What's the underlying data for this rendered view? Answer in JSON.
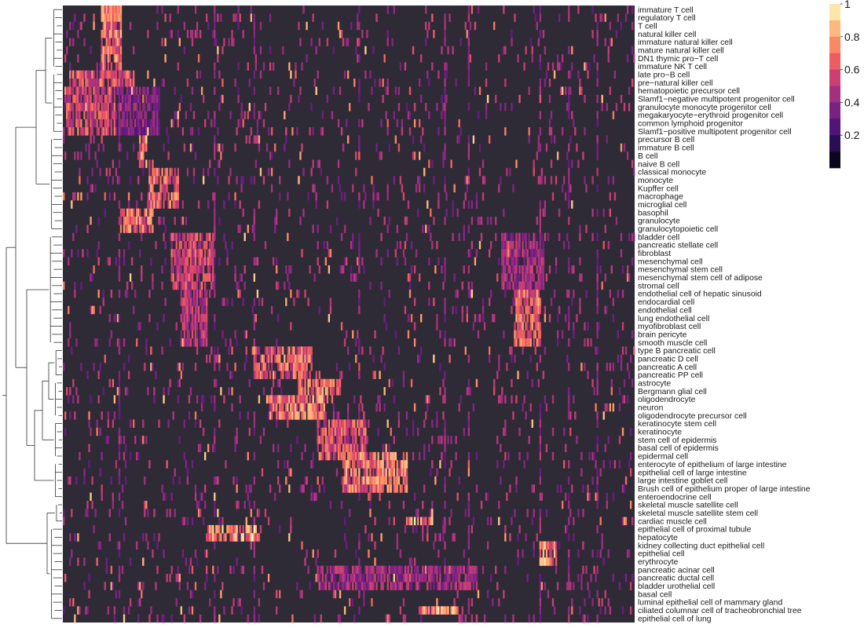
{
  "chart_data": {
    "type": "heatmap",
    "title": "",
    "xlabel": "",
    "ylabel": "",
    "row_labels": [
      "immature T cell",
      "regulatory T cell",
      "T cell",
      "natural killer cell",
      "immature natural killer cell",
      "mature natural killer cell",
      "DN1 thymic pro−T cell",
      "immature NK T cell",
      "late pro−B cell",
      "pre−natural killer cell",
      "hematopoietic precursor cell",
      "Slamf1−negative multipotent progenitor cell",
      "granulocyte monocyte progenitor cell",
      "megakaryocyte−erythroid progenitor cell",
      "common lymphoid progenitor",
      "Slamf1−positive multipotent progenitor cell",
      "precursor B cell",
      "immature B cell",
      "B cell",
      "naive B cell",
      "classical monocyte",
      "monocyte",
      "Kupffer cell",
      "macrophage",
      "microglial cell",
      "basophil",
      "granulocyte",
      "granulocytopoietic cell",
      "bladder cell",
      "pancreatic stellate cell",
      "fibroblast",
      "mesenchymal cell",
      "mesenchymal stem cell",
      "mesenchymal stem cell of adipose",
      "stromal cell",
      "endothelial cell of hepatic sinusoid",
      "endocardial cell",
      "endothelial cell",
      "lung endothelial cell",
      "myofibroblast cell",
      "brain pericyte",
      "smooth muscle cell",
      "type B pancreatic cell",
      "pancreatic D cell",
      "pancreatic A cell",
      "pancreatic PP cell",
      "astrocyte",
      "Bergmann glial cell",
      "oligodendrocyte",
      "neuron",
      "oligodendrocyte precursor cell",
      "keratinocyte stem cell",
      "keratinocyte",
      "stem cell of epidermis",
      "basal cell of epidermis",
      "epidermal cell",
      "enterocyte of epithelium of large intestine",
      "epithelial cell of large intestine",
      "large intestine goblet cell",
      "Brush cell of epithelium proper of large intestine",
      "enteroendocrine cell",
      "skeletal muscle satellite cell",
      "skeletal muscle satellite stem cell",
      "cardiac muscle cell",
      "epithelial cell of proximal tubule",
      "hepatocyte",
      "kidney collecting duct epithelial cell",
      "epithelial cell",
      "erythrocyte",
      "pancreatic acinar cell",
      "pancreatic ductal cell",
      "bladder urothelial cell",
      "basal cell",
      "luminal epithelial cell of mammary gland",
      "ciliated columnar cell of tracheobronchial tree",
      "epithelial cell of lung"
    ],
    "n_columns": 360,
    "value_range": [
      0,
      1
    ],
    "colorbar": {
      "ticks": [
        0.2,
        0.4,
        0.6,
        0.8,
        1
      ],
      "tick_labels": [
        "0.2",
        "0.4",
        "0.6",
        "0.8",
        "1"
      ],
      "colors": [
        "#000004",
        "#140e36",
        "#3b0f70",
        "#641a80",
        "#8c2981",
        "#b73779",
        "#de4968",
        "#f7705c",
        "#fe9f6d",
        "#fecf92",
        "#fcfdbf"
      ]
    },
    "background_color": "#2e2a36",
    "dendrogram": "left",
    "legend_position": "top-right",
    "blocks": [
      {
        "rows": [
          0,
          7
        ],
        "cols": [
          12,
          18
        ],
        "value": 0.85
      },
      {
        "rows": [
          8,
          9
        ],
        "cols": [
          2,
          22
        ],
        "value": 0.75
      },
      {
        "rows": [
          10,
          15
        ],
        "cols": [
          1,
          16
        ],
        "value": 0.72
      },
      {
        "rows": [
          10,
          15
        ],
        "cols": [
          16,
          30
        ],
        "value": 0.45
      },
      {
        "rows": [
          16,
          19
        ],
        "cols": [
          24,
          26
        ],
        "value": 0.9
      },
      {
        "rows": [
          20,
          24
        ],
        "cols": [
          27,
          36
        ],
        "value": 0.8
      },
      {
        "rows": [
          25,
          27
        ],
        "cols": [
          18,
          28
        ],
        "value": 0.82
      },
      {
        "rows": [
          28,
          34
        ],
        "cols": [
          34,
          47
        ],
        "value": 0.7
      },
      {
        "rows": [
          35,
          41
        ],
        "cols": [
          37,
          45
        ],
        "value": 0.62
      },
      {
        "rows": [
          28,
          34
        ],
        "cols": [
          138,
          151
        ],
        "value": 0.55
      },
      {
        "rows": [
          35,
          41
        ],
        "cols": [
          142,
          150
        ],
        "value": 0.8
      },
      {
        "rows": [
          42,
          45
        ],
        "cols": [
          60,
          78
        ],
        "value": 0.8
      },
      {
        "rows": [
          46,
          47
        ],
        "cols": [
          74,
          87
        ],
        "value": 0.85
      },
      {
        "rows": [
          48,
          50
        ],
        "cols": [
          64,
          83
        ],
        "value": 0.85
      },
      {
        "rows": [
          51,
          55
        ],
        "cols": [
          80,
          95
        ],
        "value": 0.75
      },
      {
        "rows": [
          55,
          59
        ],
        "cols": [
          88,
          108
        ],
        "value": 0.85
      },
      {
        "rows": [
          63,
          63
        ],
        "cols": [
          108,
          116
        ],
        "value": 0.95
      },
      {
        "rows": [
          64,
          65
        ],
        "cols": [
          45,
          62
        ],
        "value": 0.97
      },
      {
        "rows": [
          66,
          68
        ],
        "cols": [
          150,
          155
        ],
        "value": 0.9
      },
      {
        "rows": [
          69,
          71
        ],
        "cols": [
          80,
          130
        ],
        "value": 0.55
      },
      {
        "rows": [
          74,
          74
        ],
        "cols": [
          112,
          124
        ],
        "value": 0.9
      }
    ]
  }
}
